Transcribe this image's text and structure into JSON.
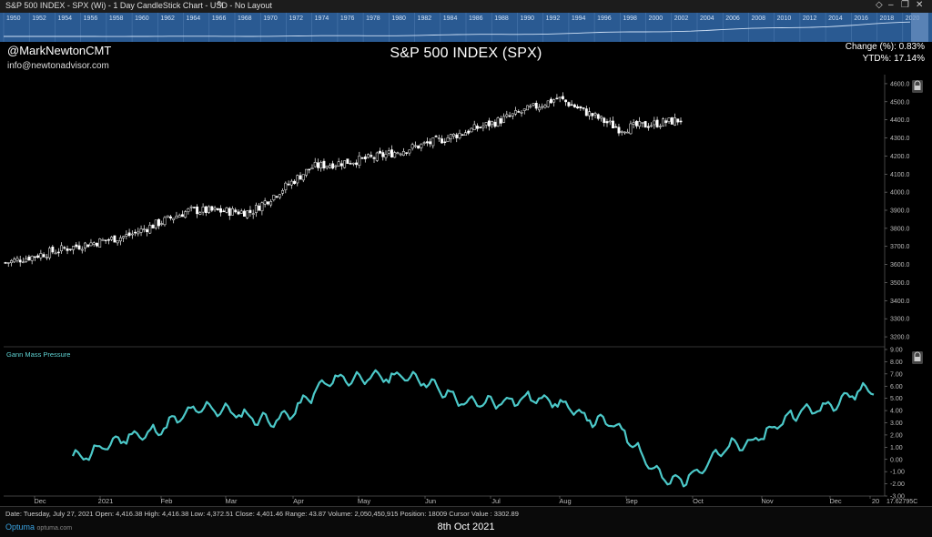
{
  "window": {
    "title": "S&P 500 INDEX - SPX (Wi) - 1 Day CandleStick Chart - USD - No Layout"
  },
  "header": {
    "handle": "@MarkNewtonCMT",
    "email": "info@newtonadvisor.com",
    "title": "S&P 500 INDEX (SPX)",
    "change_label": "Change (%): 0.83%",
    "ytd_label": "YTD%: 17.14%"
  },
  "overview_years": [
    "1950",
    "1952",
    "1954",
    "1956",
    "1958",
    "1960",
    "1962",
    "1964",
    "1966",
    "1968",
    "1970",
    "1972",
    "1974",
    "1976",
    "1978",
    "1980",
    "1982",
    "1984",
    "1986",
    "1988",
    "1990",
    "1992",
    "1994",
    "1996",
    "1998",
    "2000",
    "2002",
    "2004",
    "2006",
    "2008",
    "2010",
    "2012",
    "2014",
    "2016",
    "2018",
    "2020"
  ],
  "indicator_label": "Gann Mass Pressure",
  "status": {
    "info": "Date: Tuesday, July 27, 2021 Open: 4,416.38 High: 4,416.38 Low: 4,372.51 Close: 4,401.46 Range: 43.87 Volume: 2,050,450,915 Position: 18009 Cursor Value : 3302.89",
    "logo": "Optuma",
    "logo_sub": "optuma.com",
    "footer_date": "8th Oct 2021",
    "cursor_value": "17.62795C"
  },
  "colors": {
    "overview_bg": "#2a5a92",
    "indicator_line": "#4cc9c9",
    "candle": "#ffffff"
  },
  "chart_data": [
    {
      "type": "candlestick",
      "title": "S&P 500 INDEX (SPX)",
      "y_axis_ticks": [
        3200,
        3300,
        3400,
        3500,
        3600,
        3700,
        3800,
        3900,
        4000,
        4100,
        4200,
        4300,
        4400,
        4500,
        4600
      ],
      "ylim": [
        3150,
        4650
      ],
      "x_axis_ticks": [
        "Dec",
        "2021",
        "Feb",
        "Mar",
        "Apr",
        "May",
        "Jun",
        "Jul",
        "Aug",
        "Sep",
        "Oct",
        "Nov",
        "Dec",
        "20"
      ],
      "x": [
        "2020-11",
        "2020-12",
        "2021-01",
        "2021-02",
        "2021-03",
        "2021-04",
        "2021-05",
        "2021-06",
        "2021-07",
        "2021-08",
        "2021-09",
        "2021-10"
      ],
      "close": [
        3610,
        3690,
        3760,
        3900,
        3890,
        4140,
        4190,
        4280,
        4390,
        4520,
        4350,
        4400
      ],
      "legend": "none",
      "grid": false
    },
    {
      "type": "line",
      "series": [
        {
          "name": "Gann Mass Pressure",
          "x": [
            "2020-12",
            "2021-01",
            "2021-02",
            "2021-03",
            "2021-04",
            "2021-05",
            "2021-06",
            "2021-07",
            "2021-08",
            "2021-09",
            "2021-10",
            "2021-11",
            "2021-12"
          ],
          "values": [
            0.2,
            2.0,
            4.2,
            3.2,
            6.6,
            6.8,
            4.6,
            5.0,
            3.0,
            -1.8,
            1.2,
            4.0,
            5.8
          ]
        }
      ],
      "y_axis_ticks": [
        -3.0,
        -2.0,
        -1.0,
        0.0,
        1.0,
        2.0,
        3.0,
        4.0,
        5.0,
        6.0,
        7.0,
        8.0,
        9.0
      ],
      "ylim": [
        -3,
        9
      ]
    }
  ]
}
